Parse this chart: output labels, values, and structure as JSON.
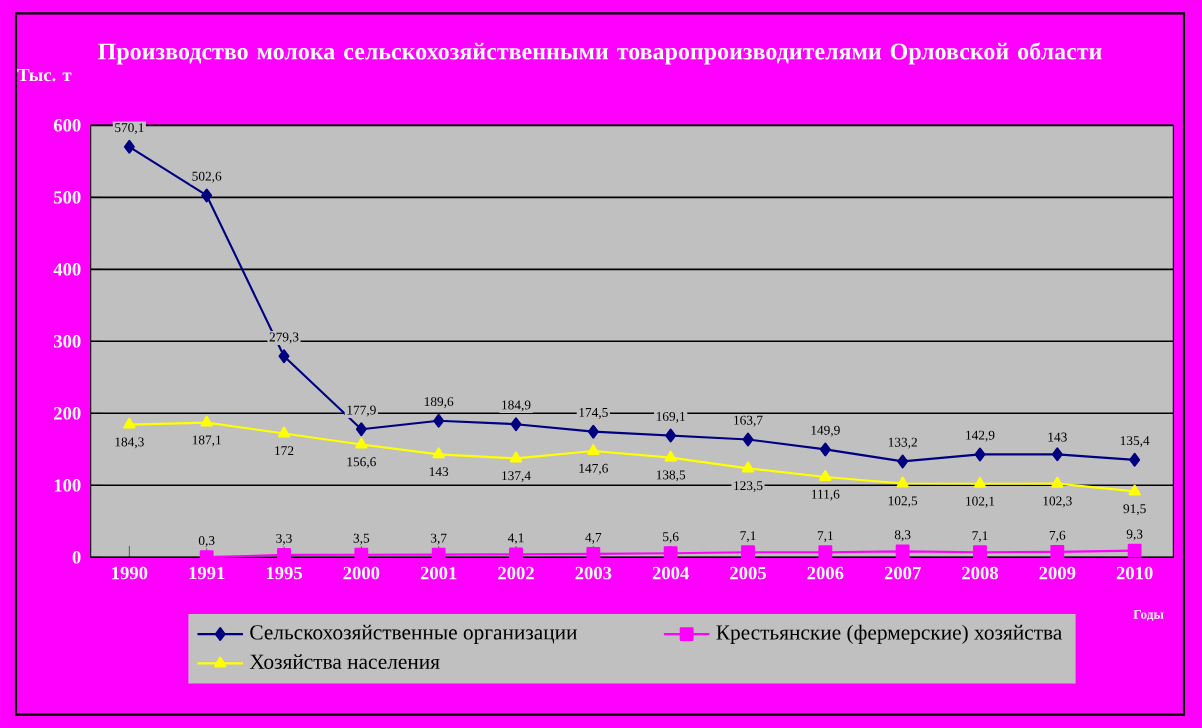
{
  "chart_data": {
    "type": "line",
    "title": "Производство молока сельскохозяйственными товаропроизводителями Орловской области",
    "ylabel": "Тыс. т",
    "xlabel": "Годы",
    "categories": [
      "1990",
      "1991",
      "1995",
      "2000",
      "2001",
      "2002",
      "2003",
      "2004",
      "2005",
      "2006",
      "2007",
      "2008",
      "2009",
      "2010"
    ],
    "series": [
      {
        "name": "Сельскохозяйственные организации",
        "color": "#000080",
        "marker": "diamond",
        "values": [
          570.1,
          502.6,
          279.3,
          177.9,
          189.6,
          184.9,
          174.5,
          169.1,
          163.7,
          149.9,
          133.2,
          142.9,
          143,
          135.4
        ],
        "value_labels": [
          "570,1",
          "502,6",
          "279,3",
          "177,9",
          "189,6",
          "184,9",
          "174,5",
          "169,1",
          "163,7",
          "149,9",
          "133,2",
          "142,9",
          "143",
          "135,4"
        ]
      },
      {
        "name": "Крестьянские (фермерские) хозяйства",
        "color": "#ff00ff",
        "marker": "square",
        "values": [
          null,
          0.3,
          3.3,
          3.5,
          3.7,
          4.1,
          4.7,
          5.6,
          7.1,
          7.1,
          8.3,
          7.1,
          7.6,
          9.3
        ],
        "value_labels": [
          null,
          "0,3",
          "3,3",
          "3,5",
          "3,7",
          "4,1",
          "4,7",
          "5,6",
          "7,1",
          "7,1",
          "8,3",
          "7,1",
          "7,6",
          "9,3"
        ]
      },
      {
        "name": "Хозяйства населения",
        "color": "#ffff00",
        "marker": "triangle",
        "values": [
          184.3,
          187.1,
          172,
          156.6,
          143,
          137.4,
          147.6,
          138.5,
          123.5,
          111.6,
          102.5,
          102.1,
          102.3,
          91.5
        ],
        "value_labels": [
          "184,3",
          "187,1",
          "172",
          "156,6",
          "143",
          "137,4",
          "147,6",
          "138,5",
          "123,5",
          "111,6",
          "102,5",
          "102,1",
          "102,3",
          "91,5"
        ]
      }
    ],
    "ylim": [
      0,
      600
    ],
    "yticks": [
      0,
      100,
      200,
      300,
      400,
      500,
      600
    ],
    "grid": "y",
    "legend": "bottom"
  }
}
